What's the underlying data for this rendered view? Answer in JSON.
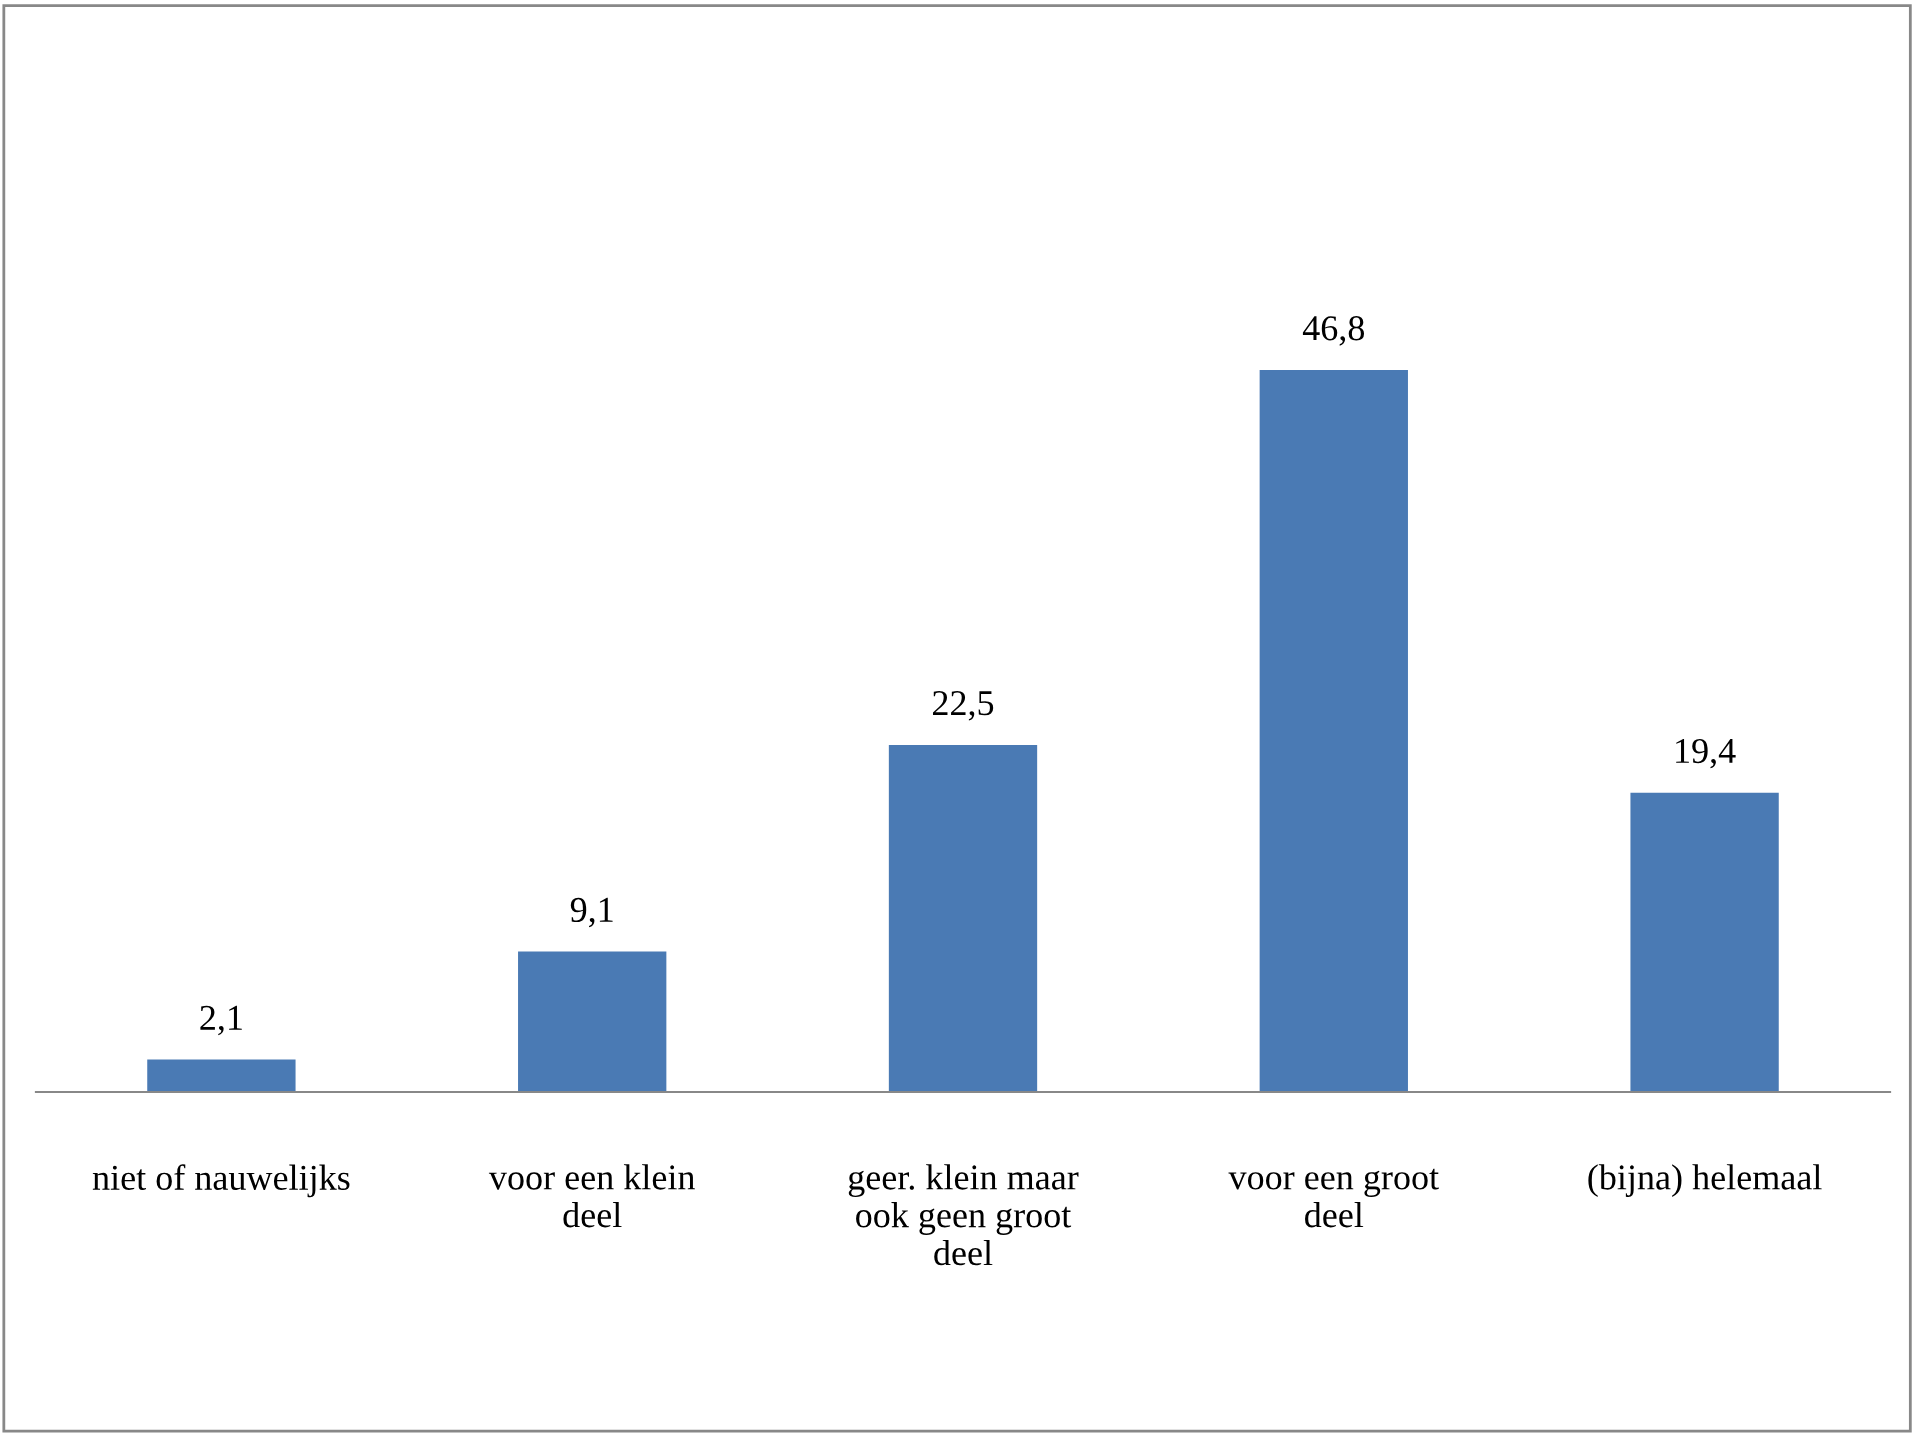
{
  "chart_data": {
    "type": "bar",
    "categories": [
      "niet of nauwelijks",
      "voor een klein deel",
      "geer. klein maar ook geen groot deel",
      "voor een groot deel",
      "(bijna) helemaal"
    ],
    "values": [
      2.1,
      9.1,
      22.5,
      46.8,
      19.4
    ],
    "value_labels": [
      "2,1",
      "9,1",
      "22,5",
      "46,8",
      "19,4"
    ],
    "color": "#4a7ab4"
  }
}
